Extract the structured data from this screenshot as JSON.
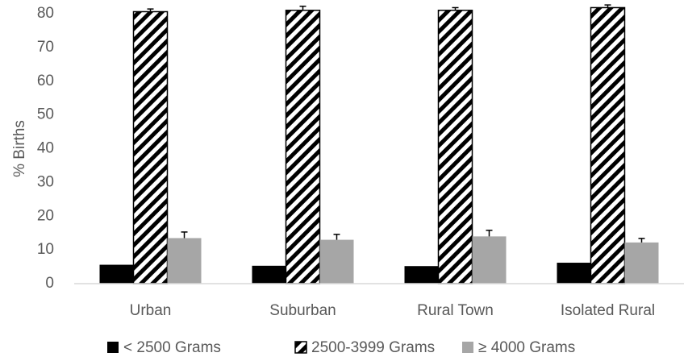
{
  "chart_data": {
    "type": "bar",
    "title": "",
    "xlabel": "",
    "ylabel": "% Births",
    "ylim": [
      0,
      80
    ],
    "yticks": [
      0,
      10,
      20,
      30,
      40,
      50,
      60,
      70,
      80
    ],
    "grid": false,
    "legend_position": "bottom",
    "categories": [
      "Urban",
      "Suburban",
      "Rural Town",
      "Isolated Rural"
    ],
    "series": [
      {
        "name": "< 2500 Grams",
        "fill": "solid",
        "color": "#000000",
        "values": [
          5.6,
          5.3,
          5.2,
          6.2
        ],
        "error": [
          0,
          0,
          0,
          0
        ]
      },
      {
        "name": "2500-3999 Grams",
        "fill": "hatch",
        "color": "#000000",
        "values": [
          80.6,
          81.0,
          81.0,
          81.8
        ],
        "error": [
          0.8,
          1.2,
          0.8,
          0.8
        ]
      },
      {
        "name": "≥ 4000 Grams",
        "fill": "solid",
        "color": "#a6a6a6",
        "values": [
          13.5,
          13.0,
          14.0,
          12.2
        ],
        "error": [
          1.8,
          1.6,
          1.8,
          1.2
        ]
      }
    ]
  }
}
